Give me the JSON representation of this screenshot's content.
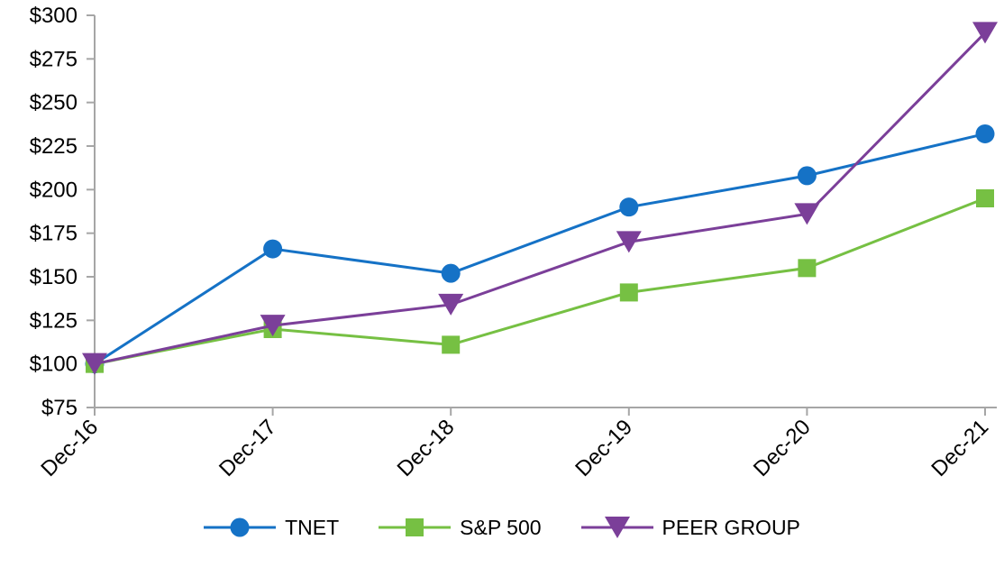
{
  "chart_data": {
    "type": "line",
    "title": "",
    "xlabel": "",
    "ylabel": "",
    "categories": [
      "Dec-16",
      "Dec-17",
      "Dec-18",
      "Dec-19",
      "Dec-20",
      "Dec-21"
    ],
    "series": [
      {
        "name": "TNET",
        "marker": "circle",
        "color": "#1572C6",
        "values": [
          100,
          166,
          152,
          190,
          208,
          232
        ]
      },
      {
        "name": "S&P 500",
        "marker": "square",
        "color": "#76C043",
        "values": [
          100,
          120,
          111,
          141,
          155,
          195
        ]
      },
      {
        "name": "PEER GROUP",
        "marker": "triangle-down",
        "color": "#7B3F99",
        "values": [
          100,
          122,
          134,
          170,
          186,
          290
        ]
      }
    ],
    "y_axis": {
      "min": 75,
      "max": 300,
      "step": 25,
      "tick_prefix": "$",
      "labels": [
        "$75",
        "$100",
        "$125",
        "$150",
        "$175",
        "$200",
        "$225",
        "$250",
        "$275",
        "$300"
      ]
    },
    "ylim": [
      75,
      300
    ],
    "grid": false,
    "legend_position": "bottom",
    "axis_color": "#A6A6A6",
    "text_color": "#000000",
    "background_color": "#FFFFFF"
  }
}
